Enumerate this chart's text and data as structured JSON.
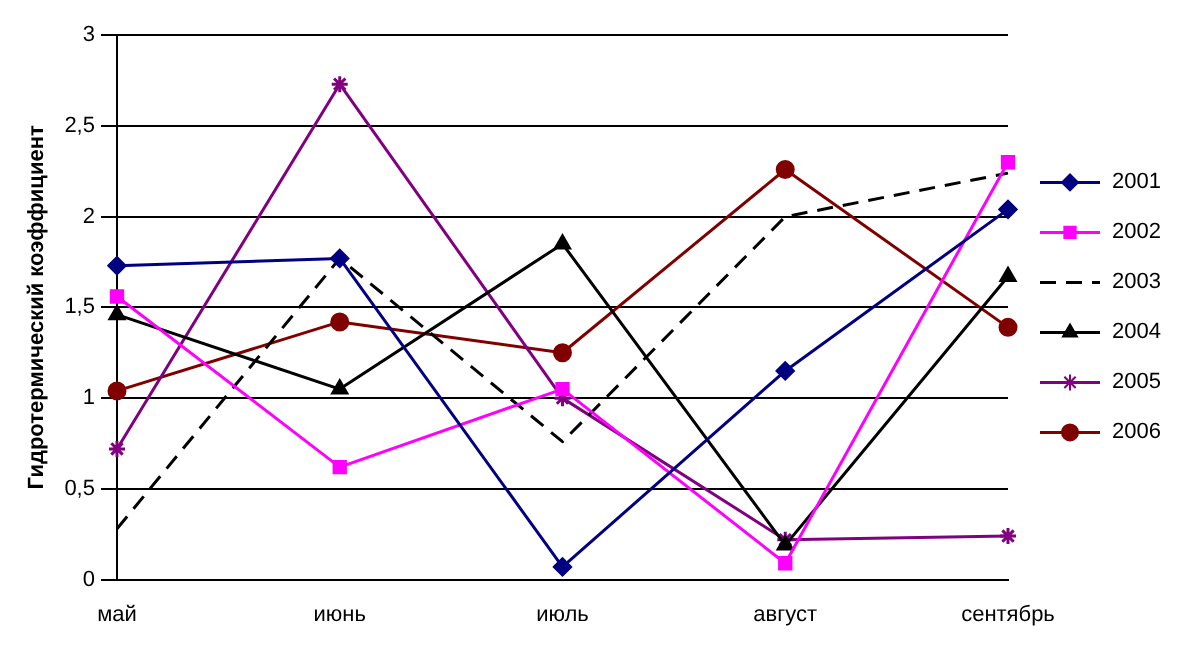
{
  "chart_data": {
    "type": "line",
    "ylabel": "Гидротермический коэффициент",
    "categories": [
      "май",
      "июнь",
      "июль",
      "август",
      "сентябрь"
    ],
    "series": [
      {
        "name": "2001",
        "color": "#000080",
        "marker": "diamond",
        "line_style": "solid",
        "values": [
          1.73,
          1.77,
          0.07,
          1.15,
          2.04
        ]
      },
      {
        "name": "2002",
        "color": "#ff00ff",
        "marker": "square",
        "line_style": "solid",
        "values": [
          1.56,
          0.62,
          1.05,
          0.09,
          2.3
        ]
      },
      {
        "name": "2003",
        "color": "#000000",
        "marker": "none",
        "line_style": "dashed",
        "values": [
          0.28,
          1.77,
          0.76,
          2.0,
          2.24
        ]
      },
      {
        "name": "2004",
        "color": "#000000",
        "marker": "triangle",
        "line_style": "solid",
        "values": [
          1.46,
          1.05,
          1.85,
          0.19,
          1.67
        ]
      },
      {
        "name": "2005",
        "color": "#800080",
        "marker": "cross",
        "line_style": "solid",
        "values": [
          0.72,
          2.73,
          1.0,
          0.22,
          0.24
        ]
      },
      {
        "name": "2006",
        "color": "#800000",
        "marker": "circle",
        "line_style": "solid",
        "values": [
          1.04,
          1.42,
          1.25,
          2.26,
          1.39
        ]
      }
    ],
    "ylim": [
      0,
      3
    ],
    "yticks": [
      0,
      {
        "value": 0.5,
        "label": "0,5"
      },
      1,
      {
        "value": 1.5,
        "label": "1,5"
      },
      2,
      {
        "value": 2.5,
        "label": "2,5"
      },
      3
    ],
    "grid": "y",
    "legend": "right"
  }
}
